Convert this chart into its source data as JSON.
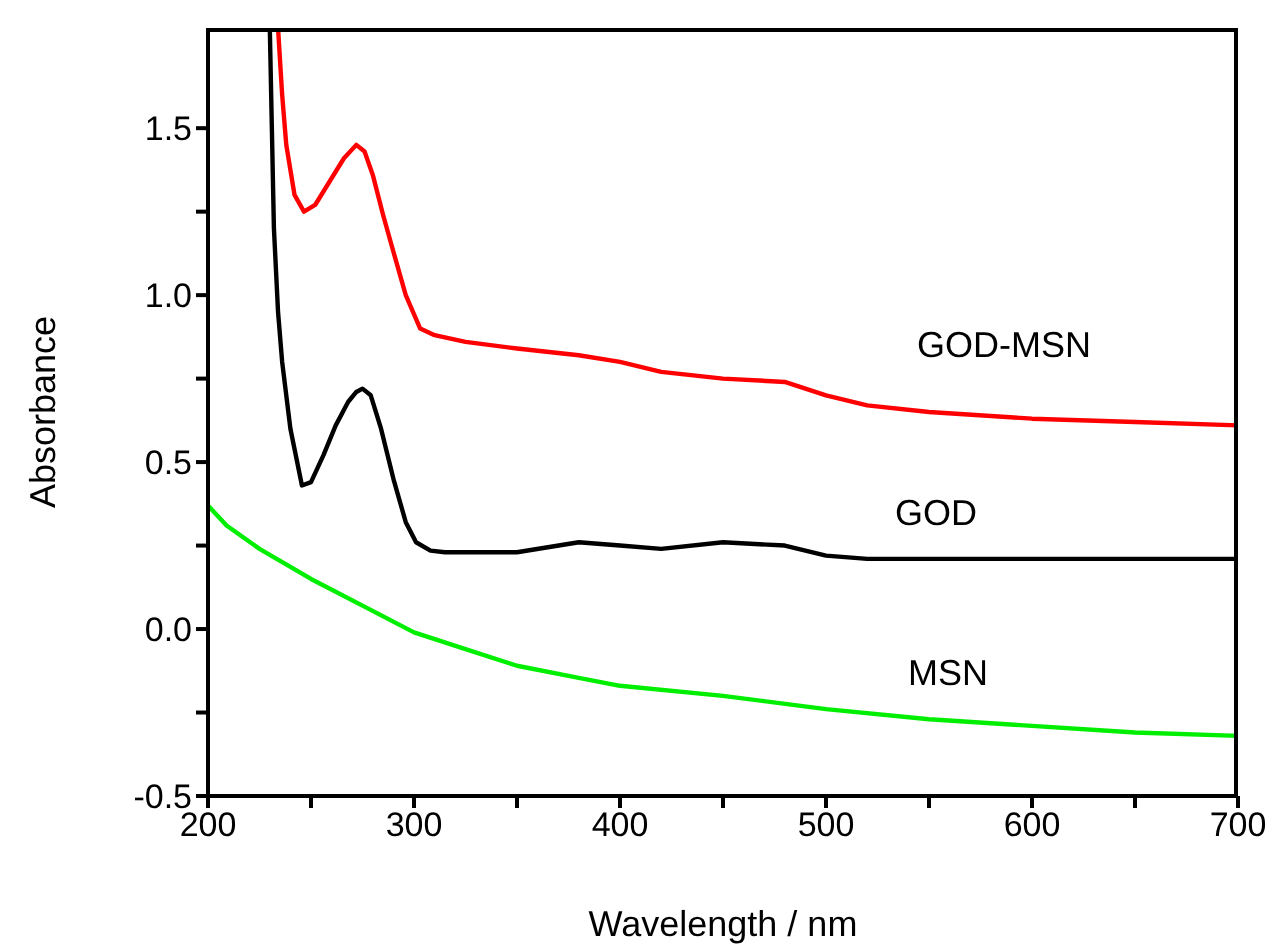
{
  "chart_data": {
    "type": "line",
    "xlabel": "Wavelength / nm",
    "ylabel": "Absorbance",
    "xlim": [
      200,
      700
    ],
    "ylim": [
      -0.5,
      1.8
    ],
    "xticks": [
      200,
      {
        "value": 250,
        "label": null
      },
      300,
      {
        "value": 350,
        "label": null
      },
      400,
      {
        "value": 450,
        "label": null
      },
      500,
      {
        "value": 550,
        "label": null
      },
      600,
      {
        "value": 650,
        "label": null
      },
      700
    ],
    "yticks": [
      -0.5,
      {
        "value": -0.25,
        "label": null
      },
      {
        "value": 0,
        "label": "0.0"
      },
      {
        "value": 0.25,
        "label": null
      },
      0.5,
      {
        "value": 0.75,
        "label": null
      },
      {
        "value": 1,
        "label": "1.0"
      },
      {
        "value": 1.25,
        "label": null
      },
      1.5
    ],
    "grid": false,
    "legend": false,
    "marker": "none",
    "line_style": "solid",
    "series": [
      {
        "name": "GOD-MSN",
        "color": "#ff0000",
        "x": [
          234,
          236,
          238,
          242,
          246.6,
          252,
          260,
          266,
          272,
          276,
          280,
          285,
          290,
          296,
          303,
          310,
          325,
          350,
          380,
          400,
          420,
          450,
          480,
          500,
          520,
          550,
          600,
          650,
          700
        ],
        "values": [
          1.8,
          1.6,
          1.45,
          1.3,
          1.25,
          1.27,
          1.35,
          1.41,
          1.45,
          1.43,
          1.36,
          1.24,
          1.13,
          1.0,
          0.9,
          0.88,
          0.86,
          0.84,
          0.82,
          0.8,
          0.77,
          0.75,
          0.74,
          0.7,
          0.67,
          0.65,
          0.63,
          0.62,
          0.61
        ]
      },
      {
        "name": "GOD",
        "color": "#000000",
        "x": [
          230,
          231,
          232,
          234,
          236,
          240,
          245.6,
          250,
          256,
          262,
          268,
          272,
          275,
          279,
          284,
          290,
          296,
          301,
          308,
          315,
          330,
          350,
          380,
          400,
          420,
          450,
          480,
          500,
          520,
          550,
          600,
          650,
          700
        ],
        "values": [
          1.8,
          1.5,
          1.2,
          0.95,
          0.8,
          0.6,
          0.43,
          0.44,
          0.52,
          0.61,
          0.68,
          0.71,
          0.72,
          0.7,
          0.6,
          0.45,
          0.32,
          0.26,
          0.235,
          0.23,
          0.23,
          0.23,
          0.26,
          0.25,
          0.24,
          0.26,
          0.25,
          0.22,
          0.21,
          0.21,
          0.21,
          0.21,
          0.21
        ]
      },
      {
        "name": "MSN",
        "color": "#00ee00",
        "x": [
          200,
          209,
          225,
          250,
          275,
          300,
          325,
          350,
          375,
          400,
          450,
          500,
          550,
          600,
          650,
          700
        ],
        "values": [
          0.37,
          0.31,
          0.24,
          0.15,
          0.07,
          -0.01,
          -0.06,
          -0.11,
          -0.14,
          -0.17,
          -0.2,
          -0.24,
          -0.27,
          -0.29,
          -0.31,
          -0.32
        ]
      }
    ]
  }
}
